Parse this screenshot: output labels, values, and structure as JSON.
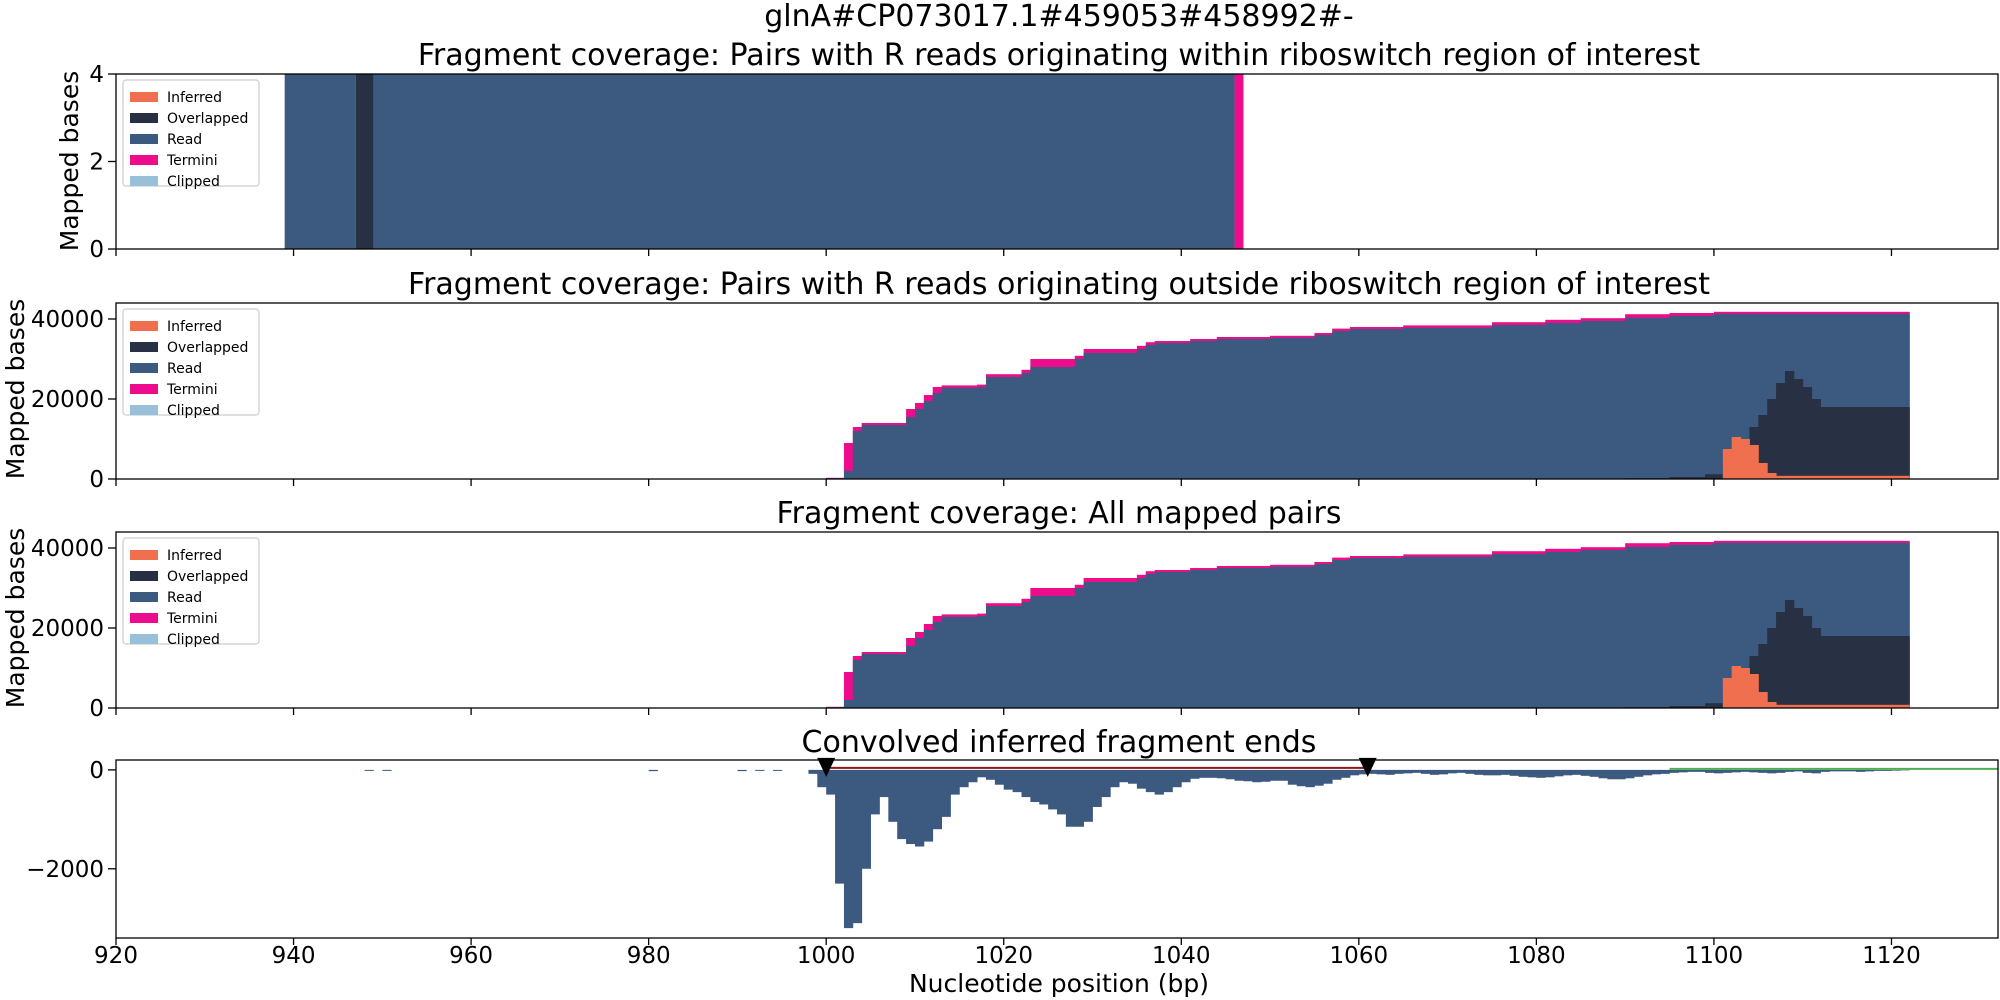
{
  "figure": {
    "suptitle": "glnA#CP073017.1#459053#458992#-",
    "xlabel": "Nucleotide position (bp)",
    "xlim": [
      920,
      1132
    ],
    "xticks": [
      920,
      940,
      960,
      980,
      1000,
      1020,
      1040,
      1060,
      1080,
      1100,
      1120
    ]
  },
  "colors": {
    "Inferred": "#EF6F4F",
    "Overlapped": "#283044",
    "Read": "#3C5A80",
    "Termini": "#EC0C8C",
    "Clipped": "#98C1D9",
    "marker": "#000000",
    "range_line": "#8B1A1A",
    "green_line": "#4CAF50"
  },
  "legend_labels": [
    "Inferred",
    "Overlapped",
    "Read",
    "Termini",
    "Clipped"
  ],
  "chart_data": [
    {
      "type": "area",
      "title": "Fragment coverage: Pairs with R reads originating within riboswitch region of interest",
      "ylabel": "Mapped bases",
      "ylim": [
        0,
        4
      ],
      "yticks": [
        0,
        2,
        4
      ],
      "legend": "top-left",
      "segments": [
        {
          "x0": 939,
          "x1": 947,
          "read": 4,
          "overlapped": 0,
          "termini": 0
        },
        {
          "x0": 947,
          "x1": 949,
          "read": 0,
          "overlapped": 4,
          "termini": 0
        },
        {
          "x0": 949,
          "x1": 1046,
          "read": 4,
          "overlapped": 0,
          "termini": 0
        },
        {
          "x0": 1046,
          "x1": 1047,
          "read": 0,
          "overlapped": 0,
          "termini": 4
        }
      ]
    },
    {
      "type": "area",
      "title": "Fragment coverage: Pairs with R reads originating outside riboswitch region of interest",
      "ylabel": "Mapped bases",
      "ylim": [
        0,
        44000
      ],
      "yticks": [
        0,
        20000,
        40000
      ],
      "legend": "top-left",
      "read_steps": [
        [
          1000,
          200
        ],
        [
          1002,
          2000
        ],
        [
          1003,
          12000
        ],
        [
          1004,
          13500
        ],
        [
          1009,
          15500
        ],
        [
          1010,
          17500
        ],
        [
          1011,
          19500
        ],
        [
          1012,
          21500
        ],
        [
          1013,
          22800
        ],
        [
          1017,
          23000
        ],
        [
          1018,
          25500
        ],
        [
          1022,
          26500
        ],
        [
          1023,
          28000
        ],
        [
          1028,
          30000
        ],
        [
          1029,
          31500
        ],
        [
          1035,
          32500
        ],
        [
          1036,
          33500
        ],
        [
          1037,
          34000
        ],
        [
          1041,
          34500
        ],
        [
          1044,
          35000
        ],
        [
          1050,
          35300
        ],
        [
          1055,
          36000
        ],
        [
          1057,
          37000
        ],
        [
          1059,
          37500
        ],
        [
          1065,
          37800
        ],
        [
          1075,
          38500
        ],
        [
          1081,
          39000
        ],
        [
          1085,
          39500
        ],
        [
          1090,
          40300
        ],
        [
          1095,
          40800
        ],
        [
          1100,
          41300
        ],
        [
          1122,
          41300
        ]
      ],
      "termini_top": [
        [
          1000,
          300
        ],
        [
          1002,
          9000
        ],
        [
          1003,
          13000
        ],
        [
          1004,
          14000
        ],
        [
          1009,
          17500
        ],
        [
          1010,
          19000
        ],
        [
          1011,
          21000
        ],
        [
          1012,
          23000
        ],
        [
          1013,
          23400
        ],
        [
          1017,
          23600
        ],
        [
          1018,
          26200
        ],
        [
          1022,
          27300
        ],
        [
          1023,
          30000
        ],
        [
          1028,
          30800
        ],
        [
          1029,
          32500
        ],
        [
          1035,
          33300
        ],
        [
          1036,
          34200
        ],
        [
          1037,
          34500
        ],
        [
          1041,
          35000
        ],
        [
          1044,
          35500
        ],
        [
          1050,
          35800
        ],
        [
          1055,
          36500
        ],
        [
          1057,
          37600
        ],
        [
          1059,
          38000
        ],
        [
          1065,
          38400
        ],
        [
          1075,
          39200
        ],
        [
          1081,
          39800
        ],
        [
          1085,
          40200
        ],
        [
          1090,
          41200
        ],
        [
          1095,
          41500
        ],
        [
          1100,
          41800
        ],
        [
          1122,
          41900
        ]
      ],
      "overlapped_steps": [
        [
          1090,
          200
        ],
        [
          1095,
          500
        ],
        [
          1099,
          1200
        ],
        [
          1101,
          4000
        ],
        [
          1102,
          7000
        ],
        [
          1103,
          10000
        ],
        [
          1104,
          13000
        ],
        [
          1105,
          16000
        ],
        [
          1106,
          20000
        ],
        [
          1107,
          24000
        ],
        [
          1108,
          27000
        ],
        [
          1109,
          25000
        ],
        [
          1110,
          23000
        ],
        [
          1111,
          20000
        ],
        [
          1112,
          18000
        ],
        [
          1122,
          18000
        ]
      ],
      "inferred_steps": [
        [
          1101,
          7500
        ],
        [
          1102,
          10500
        ],
        [
          1103,
          10000
        ],
        [
          1104,
          8500
        ],
        [
          1105,
          4000
        ],
        [
          1106,
          1500
        ],
        [
          1107,
          800
        ],
        [
          1122,
          800
        ]
      ]
    },
    {
      "type": "area",
      "title": "Fragment coverage: All mapped pairs",
      "ylabel": "Mapped bases",
      "ylim": [
        0,
        44000
      ],
      "yticks": [
        0,
        20000,
        40000
      ],
      "legend": "top-left",
      "same_as_previous": true
    },
    {
      "type": "bar",
      "title": "Convolved inferred fragment ends",
      "ylim": [
        -3400,
        200
      ],
      "yticks": [
        0,
        -2000
      ],
      "bars": [
        [
          948,
          -20
        ],
        [
          950,
          -20
        ],
        [
          980,
          -25
        ],
        [
          990,
          -25
        ],
        [
          992,
          -20
        ],
        [
          994,
          -20
        ],
        [
          998,
          -80
        ],
        [
          999,
          -350
        ],
        [
          1000,
          -500
        ],
        [
          1001,
          -2300
        ],
        [
          1002,
          -3200
        ],
        [
          1003,
          -3100
        ],
        [
          1004,
          -2000
        ],
        [
          1005,
          -900
        ],
        [
          1006,
          -550
        ],
        [
          1007,
          -1050
        ],
        [
          1008,
          -1400
        ],
        [
          1009,
          -1500
        ],
        [
          1010,
          -1550
        ],
        [
          1011,
          -1450
        ],
        [
          1012,
          -1200
        ],
        [
          1013,
          -950
        ],
        [
          1014,
          -500
        ],
        [
          1015,
          -350
        ],
        [
          1016,
          -250
        ],
        [
          1017,
          -150
        ],
        [
          1018,
          -200
        ],
        [
          1019,
          -300
        ],
        [
          1020,
          -400
        ],
        [
          1021,
          -450
        ],
        [
          1022,
          -550
        ],
        [
          1023,
          -650
        ],
        [
          1024,
          -700
        ],
        [
          1025,
          -800
        ],
        [
          1026,
          -900
        ],
        [
          1027,
          -1150
        ],
        [
          1028,
          -1150
        ],
        [
          1029,
          -1050
        ],
        [
          1030,
          -750
        ],
        [
          1031,
          -550
        ],
        [
          1032,
          -350
        ],
        [
          1033,
          -250
        ],
        [
          1034,
          -280
        ],
        [
          1035,
          -380
        ],
        [
          1036,
          -450
        ],
        [
          1037,
          -500
        ],
        [
          1038,
          -450
        ],
        [
          1039,
          -350
        ],
        [
          1040,
          -250
        ],
        [
          1041,
          -180
        ],
        [
          1042,
          -160
        ],
        [
          1043,
          -160
        ],
        [
          1044,
          -170
        ],
        [
          1045,
          -190
        ],
        [
          1046,
          -220
        ],
        [
          1047,
          -230
        ],
        [
          1048,
          -250
        ],
        [
          1049,
          -240
        ],
        [
          1050,
          -220
        ],
        [
          1051,
          -220
        ],
        [
          1052,
          -300
        ],
        [
          1053,
          -330
        ],
        [
          1054,
          -350
        ],
        [
          1055,
          -320
        ],
        [
          1056,
          -280
        ],
        [
          1057,
          -200
        ],
        [
          1058,
          -160
        ],
        [
          1059,
          -110
        ],
        [
          1060,
          -90
        ],
        [
          1061,
          -80
        ],
        [
          1062,
          -90
        ],
        [
          1063,
          -100
        ],
        [
          1064,
          -80
        ],
        [
          1065,
          -70
        ],
        [
          1066,
          -60
        ],
        [
          1067,
          -80
        ],
        [
          1068,
          -100
        ],
        [
          1069,
          -90
        ],
        [
          1070,
          -70
        ],
        [
          1071,
          -60
        ],
        [
          1072,
          -80
        ],
        [
          1073,
          -100
        ],
        [
          1074,
          -110
        ],
        [
          1075,
          -110
        ],
        [
          1076,
          -100
        ],
        [
          1077,
          -120
        ],
        [
          1078,
          -140
        ],
        [
          1079,
          -150
        ],
        [
          1080,
          -160
        ],
        [
          1081,
          -150
        ],
        [
          1082,
          -130
        ],
        [
          1083,
          -110
        ],
        [
          1084,
          -100
        ],
        [
          1085,
          -120
        ],
        [
          1086,
          -140
        ],
        [
          1087,
          -170
        ],
        [
          1088,
          -190
        ],
        [
          1089,
          -190
        ],
        [
          1090,
          -170
        ],
        [
          1091,
          -140
        ],
        [
          1092,
          -110
        ],
        [
          1093,
          -90
        ],
        [
          1094,
          -80
        ],
        [
          1095,
          -60
        ],
        [
          1096,
          -50
        ],
        [
          1097,
          -40
        ],
        [
          1098,
          -40
        ],
        [
          1099,
          -60
        ],
        [
          1100,
          -70
        ],
        [
          1101,
          -60
        ],
        [
          1102,
          -50
        ],
        [
          1103,
          -40
        ],
        [
          1104,
          -50
        ],
        [
          1105,
          -60
        ],
        [
          1106,
          -70
        ],
        [
          1107,
          -60
        ],
        [
          1108,
          -40
        ],
        [
          1109,
          -30
        ],
        [
          1110,
          -60
        ],
        [
          1111,
          -70
        ],
        [
          1112,
          -40
        ],
        [
          1113,
          -30
        ],
        [
          1114,
          -30
        ],
        [
          1115,
          -30
        ],
        [
          1116,
          -40
        ],
        [
          1117,
          -30
        ],
        [
          1118,
          -20
        ],
        [
          1119,
          -20
        ],
        [
          1120,
          -15
        ],
        [
          1121,
          -10
        ]
      ],
      "markers": [
        1000,
        1061
      ],
      "range_line": [
        1000,
        1061
      ],
      "green_line": [
        1095,
        1132
      ]
    }
  ]
}
